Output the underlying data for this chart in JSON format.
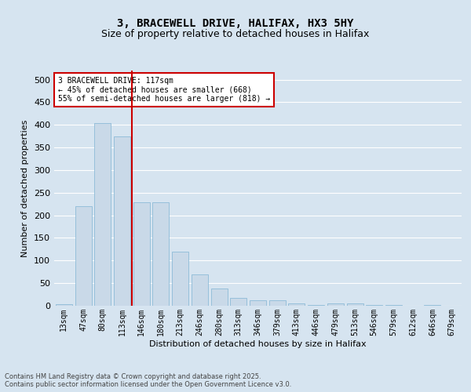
{
  "title": "3, BRACEWELL DRIVE, HALIFAX, HX3 5HY",
  "subtitle": "Size of property relative to detached houses in Halifax",
  "xlabel": "Distribution of detached houses by size in Halifax",
  "ylabel": "Number of detached properties",
  "categories": [
    "13sqm",
    "47sqm",
    "80sqm",
    "113sqm",
    "146sqm",
    "180sqm",
    "213sqm",
    "246sqm",
    "280sqm",
    "313sqm",
    "346sqm",
    "379sqm",
    "413sqm",
    "446sqm",
    "479sqm",
    "513sqm",
    "546sqm",
    "579sqm",
    "612sqm",
    "646sqm",
    "679sqm"
  ],
  "values": [
    3,
    220,
    403,
    375,
    228,
    228,
    120,
    69,
    39,
    17,
    13,
    12,
    5,
    2,
    6,
    6,
    1,
    1,
    0,
    1,
    0
  ],
  "bar_color": "#c9d9e8",
  "bar_edgecolor": "#7fb3d3",
  "vline_index": 3.5,
  "vline_color": "#cc0000",
  "annotation_box_text": "3 BRACEWELL DRIVE: 117sqm\n← 45% of detached houses are smaller (668)\n55% of semi-detached houses are larger (818) →",
  "annotation_box_color": "#cc0000",
  "annotation_box_facecolor": "#ffffff",
  "bg_color": "#d6e4f0",
  "plot_bg_color": "#d6e4f0",
  "ylim": [
    0,
    520
  ],
  "yticks": [
    0,
    50,
    100,
    150,
    200,
    250,
    300,
    350,
    400,
    450,
    500
  ],
  "footer": "Contains HM Land Registry data © Crown copyright and database right 2025.\nContains public sector information licensed under the Open Government Licence v3.0.",
  "title_fontsize": 10,
  "subtitle_fontsize": 9,
  "tick_fontsize": 7,
  "ylabel_fontsize": 8,
  "xlabel_fontsize": 8
}
